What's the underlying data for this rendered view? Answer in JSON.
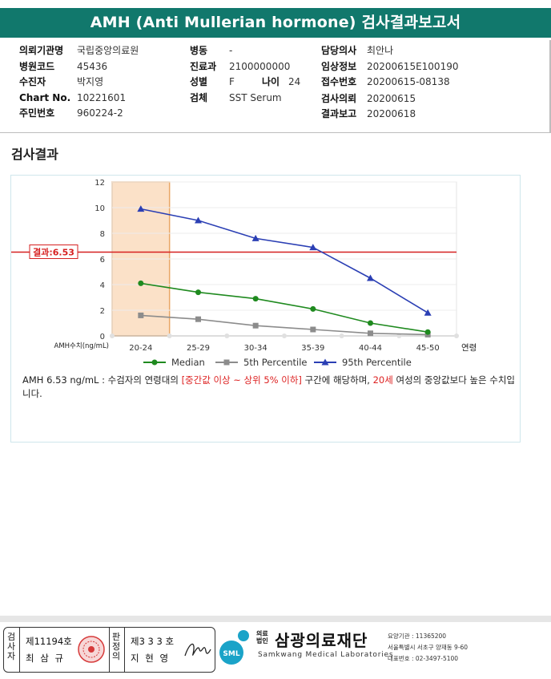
{
  "report": {
    "title": "AMH (Anti Mullerian hormone) 검사결과보고서"
  },
  "patient_info": {
    "col1": [
      {
        "label": "의뢰기관명",
        "value": "국립중앙의료원"
      },
      {
        "label": "병원코드",
        "value": "45436"
      },
      {
        "label": "수진자",
        "value": "박지영"
      },
      {
        "label": "Chart No.",
        "value": "10221601"
      },
      {
        "label": "주민번호",
        "value": "960224-2"
      }
    ],
    "col2": [
      {
        "label": "병동",
        "value": "-"
      },
      {
        "label": "진료과",
        "value": "2100000000"
      },
      {
        "label": "성별",
        "value": "F"
      },
      {
        "label": "검체",
        "value": "SST Serum"
      }
    ],
    "age": {
      "label": "나이",
      "value": "24"
    },
    "col3": [
      {
        "label": "담당의사",
        "value": "최안나"
      },
      {
        "label": "임상정보",
        "value": "20200615E100190"
      },
      {
        "label": "접수번호",
        "value": "20200615-08138"
      },
      {
        "label": "검사의뢰",
        "value": "20200615"
      },
      {
        "label": "결과보고",
        "value": "20200618"
      }
    ]
  },
  "section": {
    "title": "검사결과"
  },
  "chart_data": {
    "type": "line",
    "categories": [
      "20-24",
      "25-29",
      "30-34",
      "35-39",
      "40-44",
      "45-50"
    ],
    "x_axis_suffix": "연령",
    "ylabel": "AMH수치(ng/mL)",
    "ylim": [
      0,
      12
    ],
    "yticks": [
      0,
      2,
      4,
      6,
      8,
      10,
      12
    ],
    "grid": true,
    "legend_position": "bottom",
    "highlight_category": "20-24",
    "result_line": {
      "label": "결과:6.53",
      "value": 6.53,
      "color": "#d62020"
    },
    "series": [
      {
        "name": "Median",
        "color": "#1f8a1f",
        "marker": "circle",
        "values": [
          4.1,
          3.4,
          2.9,
          2.1,
          1.0,
          0.3
        ]
      },
      {
        "name": "5th Percentile",
        "color": "#8c8c8c",
        "marker": "square",
        "values": [
          1.6,
          1.3,
          0.8,
          0.5,
          0.2,
          0.1
        ]
      },
      {
        "name": "95th Percentile",
        "color": "#2b3fb4",
        "marker": "triangle",
        "values": [
          9.9,
          9.0,
          7.6,
          6.9,
          4.5,
          1.8
        ]
      }
    ]
  },
  "note": {
    "part1": "AMH  6.53 ng/mL : 수검자의 연령대의 ",
    "highlight1": "[중간값 이상 ~ 상위 5% 이하]",
    "part2": " 구간에 해당하며, ",
    "highlight2": "20세",
    "part3": " 여성의 중앙값보다 높은 수치입니다."
  },
  "footer": {
    "checker_label": "검사자",
    "checker_license": "제11194호",
    "checker_name": "최 삼 규",
    "judge_label": "판정의",
    "judge_license": "제3 3 3 호",
    "judge_name": "지 현 영",
    "org_prefix": "의료\n법인",
    "org_name": "삼광의료재단",
    "org_english": "Samkwang Medical Laboratories",
    "logo_text": "SML",
    "org_code": "요양기관 : 11365200",
    "org_address": "서울특별시 서초구 양재동 9-60",
    "org_phone": "대표번호 : 02-3497-5100"
  }
}
